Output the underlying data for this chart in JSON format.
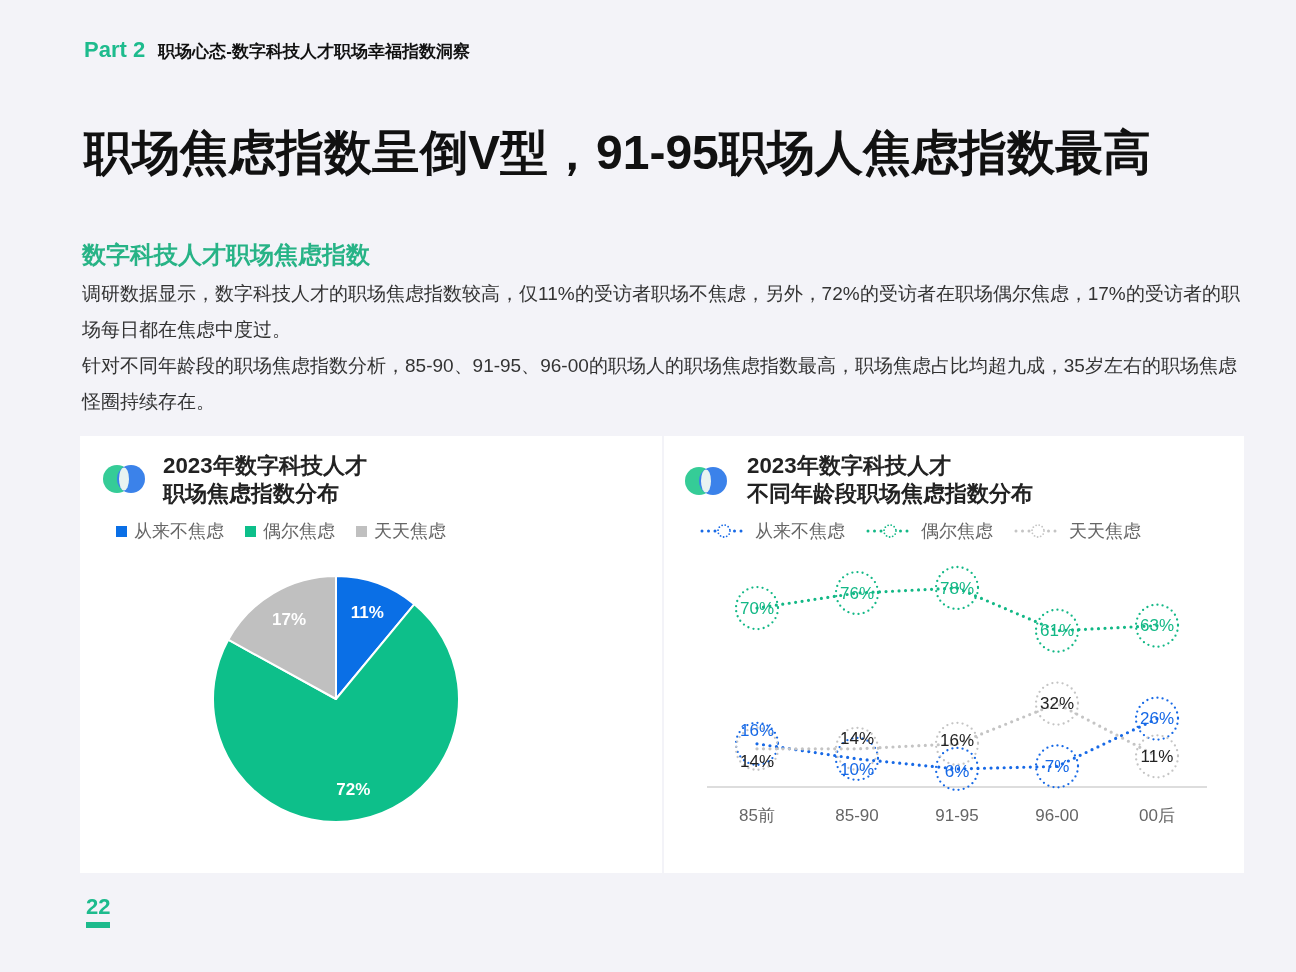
{
  "chart_data": [
    {
      "type": "other",
      "title": "职场焦虑指数呈倒V型，91-95职场人焦虑指数最高",
      "subtitle": "数字科技人才职场焦虑指数",
      "annotations": [
        "Part 2",
        "职场心态-数字科技人才职场幸福指数洞察",
        "调研数据显示，数字科技人才的职场焦虑指数较高，仅11%的受访者职场不焦虑，另外，72%的受访者在职场偶尔焦虑，17%的受访者的职场每日都在焦虑中度过。",
        "针对不同年龄段的职场焦虑指数分析，85-90、91-95、96-00的职场人的职场焦虑指数最高，职场焦虑占比均超九成，35岁左右的职场焦虑怪圈持续存在。",
        "22"
      ]
    },
    {
      "type": "pie",
      "title": "2023年数字科技人才职场焦虑指数分布",
      "categories": [
        "从来不焦虑",
        "偶尔焦虑",
        "天天焦虑"
      ],
      "values": [
        11,
        72,
        17
      ],
      "colors": [
        "#0a6fe6",
        "#0dbf8a",
        "#c0c0c0"
      ],
      "value_labels": [
        "11%",
        "72%",
        "17%"
      ],
      "legend": "top left"
    },
    {
      "type": "line",
      "title": "2023年数字科技人才不同年龄段职场焦虑指数分布",
      "categories": [
        "85前",
        "85-90",
        "91-95",
        "96-00",
        "00后"
      ],
      "series": [
        {
          "name": "从来不焦虑",
          "color": "#1769e6",
          "values": [
            16,
            10,
            6,
            7,
            26
          ],
          "value_labels": [
            "16%",
            "10%",
            "6%",
            "7%",
            "26%"
          ]
        },
        {
          "name": "偶尔焦虑",
          "color": "#13b886",
          "values": [
            70,
            76,
            78,
            61,
            63
          ],
          "value_labels": [
            "70%",
            "76%",
            "78%",
            "61%",
            "63%"
          ]
        },
        {
          "name": "天天焦虑",
          "color": "#c4c4c4",
          "values": [
            14,
            14,
            16,
            32,
            11
          ],
          "value_labels": [
            "14%",
            "14%",
            "16%",
            "32%",
            "11%"
          ]
        }
      ],
      "marker": "circle",
      "line_style": "dotted",
      "legend": "top left",
      "tick_labels": "x"
    }
  ]
}
